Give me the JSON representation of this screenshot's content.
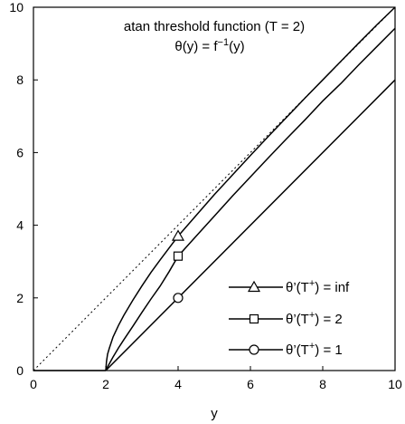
{
  "chart_data": {
    "type": "line",
    "title": "atan threshold function (T = 2)",
    "subtitle_parts": {
      "before": "θ(y) = f",
      "superscript": "−1",
      "after": "(y)"
    },
    "xlabel": "y",
    "ylabel": "",
    "xlim": [
      0,
      10
    ],
    "ylim": [
      0,
      10
    ],
    "xticks": [
      "0",
      "2",
      "4",
      "6",
      "8",
      "10"
    ],
    "yticks": [
      "0",
      "2",
      "4",
      "6",
      "8",
      "10"
    ],
    "grid": false,
    "legend_position": "bottom-right",
    "reference_line": {
      "style": "dotted",
      "x": [
        0,
        10
      ],
      "y": [
        0,
        10
      ]
    },
    "series": [
      {
        "legend": {
          "before": "θ’(T",
          "superscript": "+",
          "after": ") = inf"
        },
        "marker": "triangle",
        "marker_point": {
          "x": 4,
          "y": 3.7
        },
        "x": [
          2,
          2.02,
          2.05,
          2.1,
          2.2,
          2.35,
          2.5,
          2.75,
          3,
          3.25,
          3.5,
          3.75,
          4,
          4.5,
          5,
          5.5,
          6,
          6.5,
          7,
          7.5,
          8,
          8.5,
          9,
          9.5,
          10
        ],
        "y": [
          0,
          0.25,
          0.45,
          0.62,
          0.92,
          1.24,
          1.52,
          1.94,
          2.33,
          2.7,
          3.04,
          3.37,
          3.7,
          4.27,
          4.84,
          5.38,
          5.92,
          6.45,
          6.97,
          7.49,
          8.0,
          8.51,
          9.02,
          9.52,
          10.0
        ]
      },
      {
        "legend": {
          "before": "θ’(T",
          "superscript": "+",
          "after": ") = 2"
        },
        "marker": "square",
        "marker_point": {
          "x": 4,
          "y": 3.15
        },
        "x": [
          2,
          2.05,
          2.1,
          2.2,
          2.35,
          2.5,
          2.75,
          3,
          3.25,
          3.5,
          3.75,
          4,
          4.5,
          5,
          5.5,
          6,
          6.5,
          7,
          7.5,
          8,
          8.5,
          9,
          9.5,
          10
        ],
        "y": [
          0,
          0.1,
          0.19,
          0.37,
          0.62,
          0.85,
          1.22,
          1.6,
          1.97,
          2.32,
          2.72,
          3.15,
          3.7,
          4.25,
          4.8,
          5.33,
          5.86,
          6.38,
          6.89,
          7.42,
          7.9,
          8.42,
          8.92,
          9.42
        ]
      },
      {
        "legend": {
          "before": "θ’(T",
          "superscript": "+",
          "after": ") = 1"
        },
        "marker": "circle",
        "marker_point": {
          "x": 4,
          "y": 2.0
        },
        "x": [
          2,
          10
        ],
        "y": [
          0,
          8
        ]
      }
    ],
    "baseline": {
      "x": [
        0,
        2
      ],
      "y": [
        0,
        0
      ]
    }
  }
}
